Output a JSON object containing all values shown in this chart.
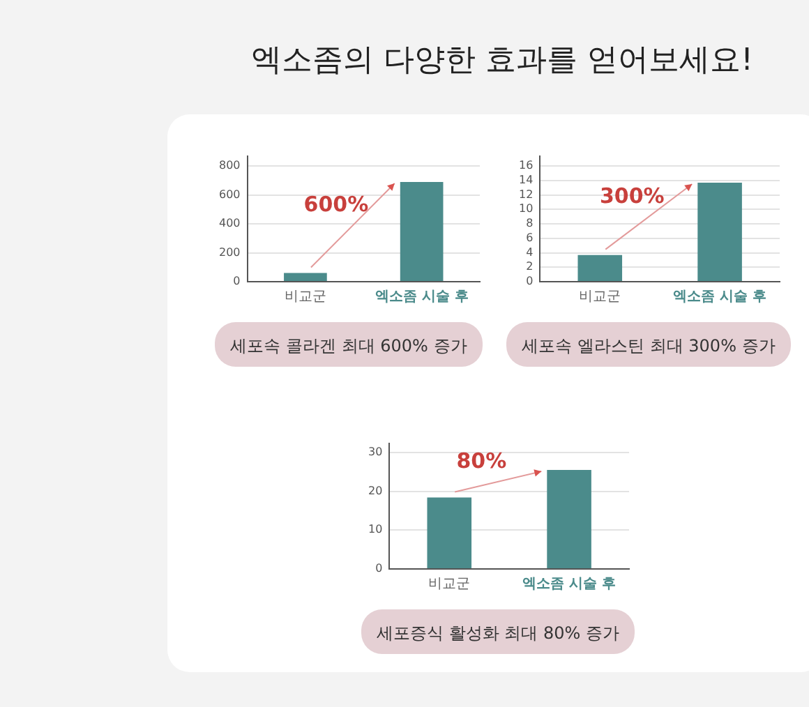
{
  "chart_data": [
    {
      "type": "bar",
      "title": "엑소좀의 다양한 효과를 얻어보세요!",
      "categories": [
        "비교군",
        "엑소좀 시술 후"
      ],
      "values": [
        60,
        690
      ],
      "color": "#4b8b8b",
      "ylim": [
        0,
        870
      ],
      "yticks": [
        0,
        200,
        400,
        600,
        800
      ],
      "grid": "y",
      "annotations": [
        {
          "text": "600%",
          "x": "엑소좀 시술 후",
          "y": 690
        },
        "세포속 콜라겐 최대 600% 증가"
      ]
    },
    {
      "type": "bar",
      "categories": [
        "비교군",
        "엑소좀 시술 후"
      ],
      "values": [
        3.7,
        13.7
      ],
      "color": "#4b8b8b",
      "ylim": [
        0,
        17.4
      ],
      "yticks": [
        0,
        2,
        4,
        6,
        8,
        10,
        12,
        14,
        16
      ],
      "grid": "y",
      "annotations": [
        {
          "text": "300%",
          "x": "엑소좀 시술 후",
          "y": 13.7
        },
        "세포속 엘라스틴 최대 300% 증가"
      ]
    },
    {
      "type": "bar",
      "categories": [
        "비교군",
        "엑소좀 시술 후"
      ],
      "values": [
        18.4,
        25.5
      ],
      "color": "#4b8b8b",
      "ylim": [
        0,
        32.4
      ],
      "yticks": [
        0,
        10,
        20,
        30
      ],
      "grid": "y",
      "annotations": [
        {
          "text": "80%",
          "x": "엑소좀 시술 후",
          "y": 25.5
        },
        "세포증식 활성화 최대 80% 증가"
      ]
    }
  ]
}
